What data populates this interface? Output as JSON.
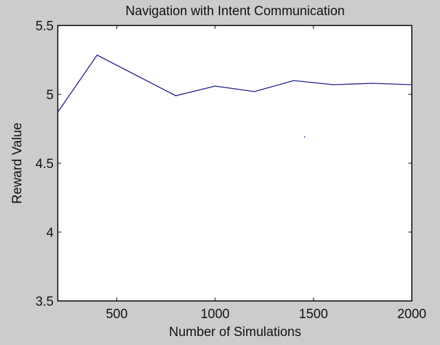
{
  "chart_data": {
    "type": "line",
    "title": "Navigation with Intent Communication",
    "xlabel": "Number of Simulations",
    "ylabel": "Reward Value",
    "xlim": [
      200,
      2000
    ],
    "ylim": [
      3.5,
      5.5
    ],
    "xticks": [
      500,
      1000,
      1500,
      2000
    ],
    "xtick_labels": [
      "500",
      "1000",
      "1500",
      "2000"
    ],
    "yticks": [
      3.5,
      4,
      4.5,
      5,
      5.5
    ],
    "ytick_labels": [
      "3.5",
      "4",
      "4.5",
      "5",
      "5.5"
    ],
    "grid": false,
    "series": [
      {
        "x": [
          200,
          400,
          800,
          1000,
          1200,
          1400,
          1500,
          1600,
          1800,
          2000
        ],
        "y": [
          4.87,
          5.285,
          4.99,
          5.06,
          5.02,
          5.1,
          5.085,
          5.07,
          5.08,
          5.07
        ],
        "color": "#1a1a8c"
      }
    ],
    "stray_point": {
      "x": 1455,
      "y": 4.69
    }
  },
  "colors": {
    "background": "#cccccc",
    "plot_area": "#ffffff",
    "line": "#1a1a8c"
  }
}
